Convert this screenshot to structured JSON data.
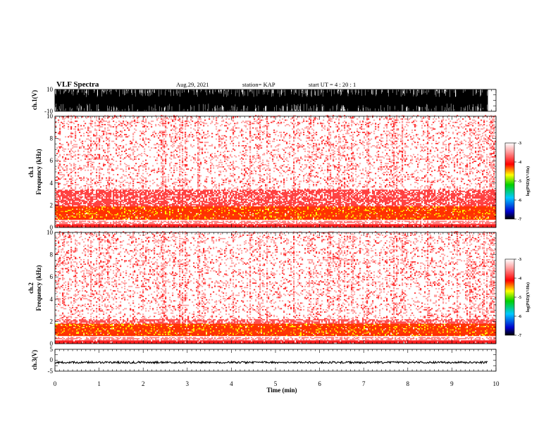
{
  "header": {
    "title": "VLF Spectra",
    "date": "Aug.29, 2021",
    "station": "station= KAP",
    "start": "start  UT  =   4 : 20 : 1"
  },
  "chart_data": [
    {
      "type": "line",
      "ylabel": "ch.1(V)",
      "ylim": [
        -10,
        10
      ],
      "yticks": [
        "10",
        "-10"
      ],
      "note": "waveform envelope saturating between +10 and -10 V"
    },
    {
      "type": "heatmap",
      "ylabel_top": "ch.1",
      "ylabel_bottom": "Frequency  (kHz)",
      "ylim": [
        0,
        10
      ],
      "yticks": [
        "0",
        "2",
        "4",
        "6",
        "8",
        "10"
      ],
      "colorbar": {
        "ticks": [
          "-3",
          "-4",
          "-5",
          "-6",
          "-7"
        ],
        "label": "log(PSD)(V²/Hz)",
        "range": [
          -7,
          -3
        ]
      }
    },
    {
      "type": "heatmap",
      "ylabel_top": "ch.2",
      "ylabel_bottom": "Frequency  (kHz)",
      "ylim": [
        0,
        10
      ],
      "yticks": [
        "0",
        "2",
        "4",
        "6",
        "8",
        "10"
      ],
      "colorbar": {
        "ticks": [
          "-3",
          "-4",
          "-5",
          "-6",
          "-7"
        ],
        "label": "log(PSD)(V²/Hz)",
        "range": [
          -7,
          -3
        ]
      }
    },
    {
      "type": "line",
      "ylabel": "ch.3(V)",
      "ylim": [
        -5,
        5
      ],
      "yticks": [
        "5",
        "0",
        "-5"
      ],
      "note": "near-constant trace around -1 V"
    }
  ],
  "xaxis": {
    "label": "Time  (min)",
    "range": [
      0,
      10
    ],
    "ticks": [
      "0",
      "1",
      "2",
      "3",
      "4",
      "5",
      "6",
      "7",
      "8",
      "9",
      "10"
    ]
  }
}
